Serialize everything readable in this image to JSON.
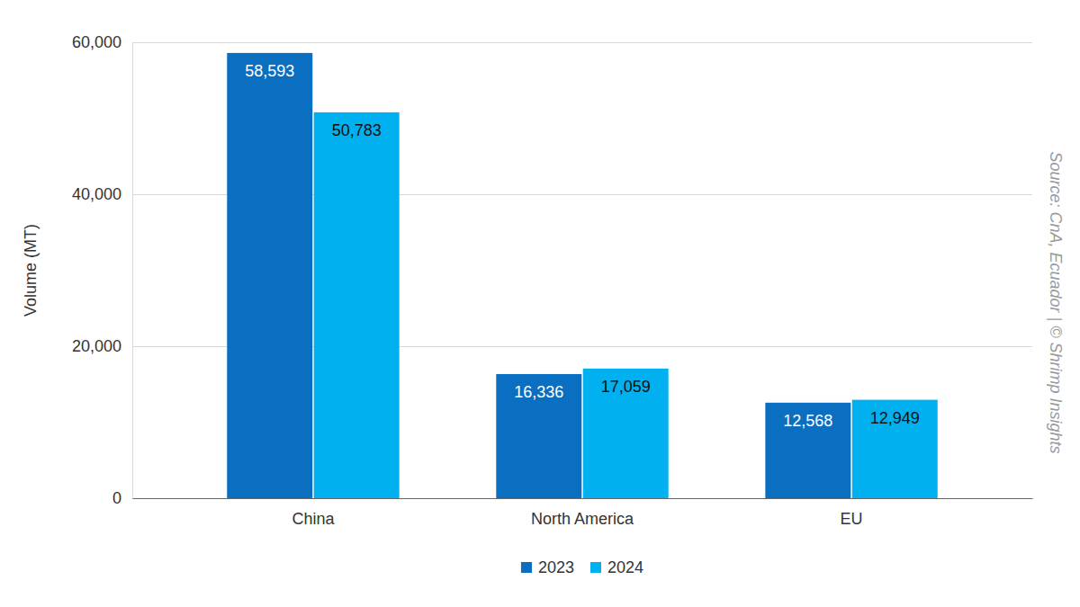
{
  "chart_data": {
    "type": "bar",
    "y_label": "Volume (MT)",
    "source": "Source: CnA, Ecuador | © Shrimp Insights",
    "categories": [
      "China",
      "North America",
      "EU"
    ],
    "series": [
      {
        "name": "2023",
        "color": "#0b6fc1",
        "values": [
          58593,
          16336,
          12568
        ],
        "value_labels": [
          "58,593",
          "16,336",
          "12,568"
        ]
      },
      {
        "name": "2024",
        "color": "#00b0ef",
        "values": [
          50783,
          17059,
          12949
        ],
        "value_labels": [
          "50,783",
          "17,059",
          "12,949"
        ]
      }
    ],
    "ylim": [
      0,
      60000
    ],
    "yticks": [
      0,
      {
        "value": 20000,
        "label": "20,000"
      },
      {
        "value": 40000,
        "label": "40,000"
      },
      {
        "value": 60000,
        "label": "60,000"
      }
    ],
    "grid": true,
    "legend": "bottom",
    "data_labels": true
  }
}
